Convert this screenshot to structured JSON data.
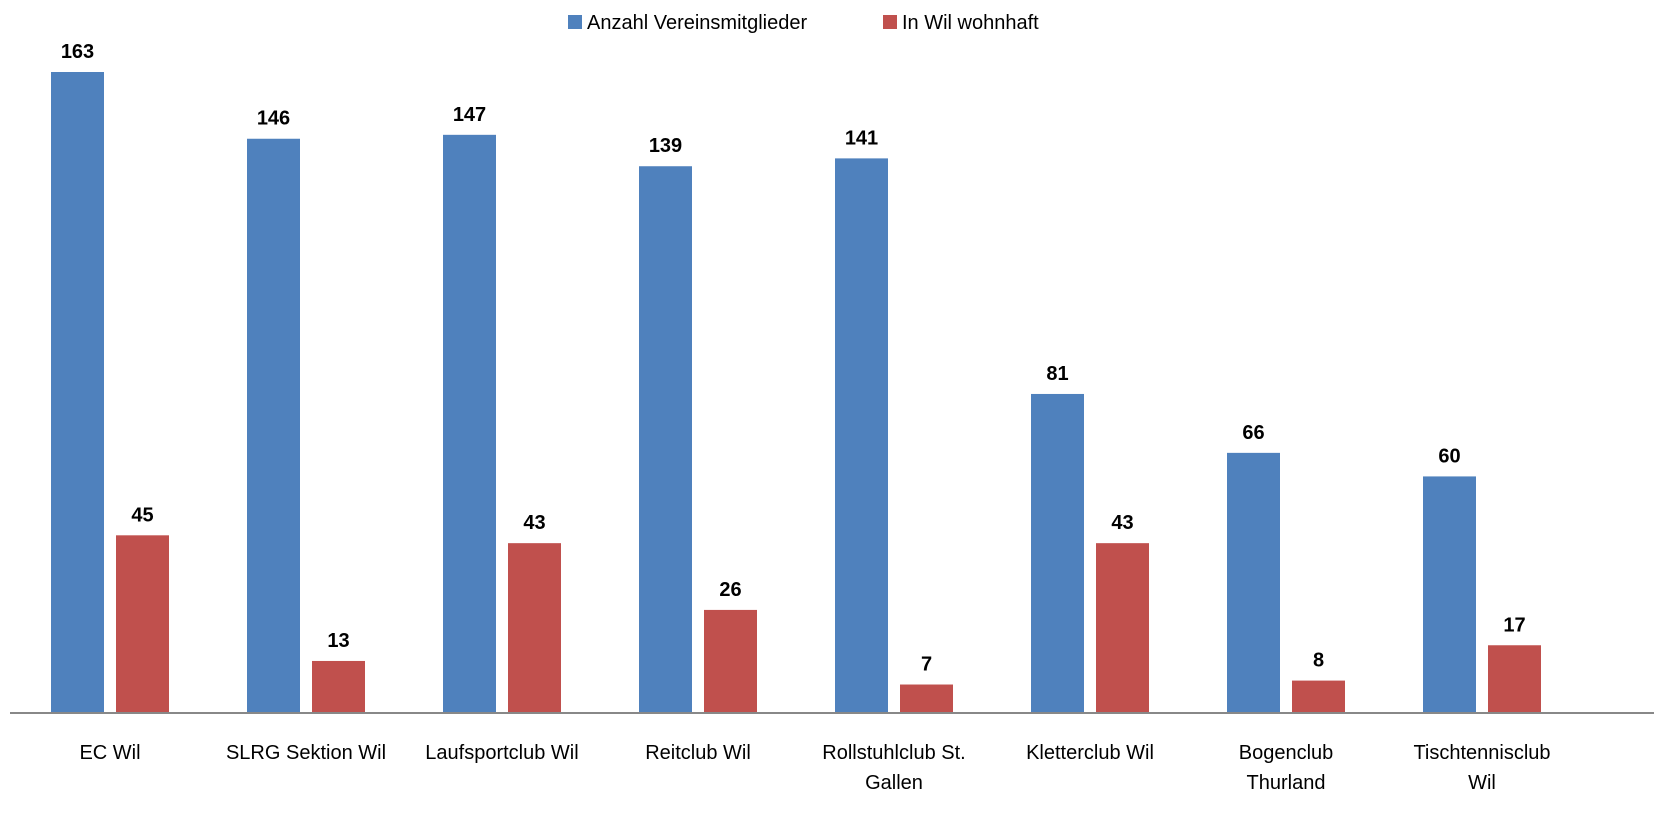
{
  "chart_data": {
    "type": "bar",
    "categories": [
      "EC Wil",
      "SLRG Sektion Wil",
      "Laufsportclub Wil",
      "Reitclub Wil",
      "Rollstuhlclub St.\nGallen",
      "Kletterclub Wil",
      "Bogenclub\nThurland",
      "Tischtennisclub\nWil"
    ],
    "series": [
      {
        "name": "Anzahl Vereinsmitglieder",
        "color": "#4f81bd",
        "values": [
          163,
          146,
          147,
          139,
          141,
          81,
          66,
          60
        ]
      },
      {
        "name": "In Wil wohnhaft",
        "color": "#c0504d",
        "values": [
          45,
          13,
          43,
          26,
          7,
          43,
          8,
          17
        ]
      }
    ],
    "legend": "top"
  }
}
